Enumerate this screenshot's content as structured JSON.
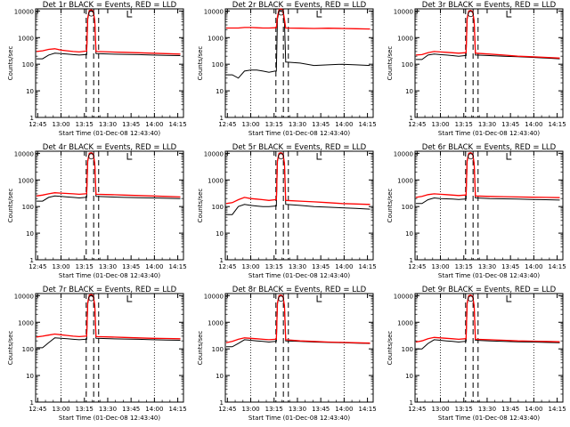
{
  "chart_data": {
    "type": "line",
    "layout": "3x3 grid of log-scale count-rate time series",
    "xlabel": "Start Time (01-Dec-08 12:43:40)",
    "ylabel": "Counts/sec",
    "xticks": [
      "12:45",
      "13:00",
      "13:15",
      "13:30",
      "13:45",
      "14:00",
      "14:15"
    ],
    "yticks": [
      "1",
      "10",
      "100",
      "1000",
      "10000"
    ],
    "ylim": [
      1,
      12000
    ],
    "yscale": "log",
    "series_colors": {
      "events": "#000000",
      "lld": "#ff0000"
    },
    "vertical_markers": {
      "dotted_minutes": [
        13.0,
        14.0
      ],
      "dashed_minutes": [
        32.5,
        37.3,
        40.5
      ],
      "dotted_offset_minutes": [
        15.0,
        75.0
      ]
    },
    "panels": [
      {
        "title": "Det 1r BLACK = Events, RED = LLD",
        "events": [
          160,
          160,
          220,
          260,
          250,
          240,
          230,
          220,
          230,
          10000,
          250,
          240,
          235,
          230,
          220,
          215,
          210
        ],
        "lld": [
          300,
          320,
          360,
          380,
          340,
          320,
          300,
          290,
          310,
          11000,
          300,
          290,
          280,
          270,
          260,
          250,
          240
        ]
      },
      {
        "title": "Det 2r BLACK = Events, RED = LLD",
        "events": [
          40,
          40,
          30,
          55,
          60,
          60,
          55,
          50,
          55,
          10000,
          120,
          110,
          90,
          95,
          100,
          95,
          90
        ],
        "lld": [
          2300,
          2300,
          2300,
          2400,
          2400,
          2350,
          2300,
          2300,
          2350,
          12000,
          2300,
          2250,
          2200,
          2250,
          2200,
          2150,
          2100
        ]
      },
      {
        "title": "Det 3r BLACK = Events, RED = LLD",
        "events": [
          150,
          150,
          220,
          240,
          230,
          220,
          210,
          200,
          210,
          10000,
          220,
          210,
          200,
          190,
          180,
          170,
          160
        ],
        "lld": [
          220,
          230,
          270,
          300,
          290,
          280,
          270,
          260,
          270,
          10500,
          260,
          240,
          220,
          200,
          190,
          180,
          170
        ]
      },
      {
        "title": "Det 4r BLACK = Events, RED = LLD",
        "events": [
          160,
          160,
          220,
          250,
          240,
          230,
          220,
          210,
          220,
          10000,
          240,
          230,
          220,
          215,
          210,
          205,
          200
        ],
        "lld": [
          250,
          270,
          300,
          330,
          320,
          310,
          300,
          290,
          300,
          10500,
          290,
          280,
          270,
          260,
          250,
          240,
          230
        ]
      },
      {
        "title": "Det 5r BLACK = Events, RED = LLD",
        "events": [
          50,
          50,
          100,
          120,
          110,
          105,
          100,
          100,
          105,
          10000,
          120,
          110,
          100,
          95,
          90,
          85,
          80
        ],
        "lld": [
          130,
          140,
          180,
          220,
          200,
          190,
          180,
          170,
          180,
          10500,
          170,
          160,
          150,
          140,
          130,
          125,
          120
        ]
      },
      {
        "title": "Det 6r BLACK = Events, RED = LLD",
        "events": [
          130,
          130,
          180,
          210,
          200,
          195,
          190,
          185,
          190,
          10000,
          210,
          200,
          195,
          190,
          185,
          180,
          175
        ],
        "lld": [
          220,
          240,
          280,
          300,
          290,
          280,
          270,
          260,
          270,
          10500,
          250,
          240,
          235,
          230,
          225,
          220,
          215
        ]
      },
      {
        "title": "Det 7r BLACK = Events, RED = LLD",
        "events": [
          110,
          110,
          170,
          260,
          250,
          240,
          230,
          220,
          230,
          10000,
          250,
          240,
          235,
          230,
          220,
          215,
          210
        ],
        "lld": [
          280,
          300,
          330,
          360,
          340,
          320,
          300,
          290,
          300,
          11000,
          290,
          280,
          270,
          260,
          250,
          245,
          240
        ]
      },
      {
        "title": "Det 8r BLACK = Events, RED = LLD",
        "events": [
          120,
          120,
          160,
          220,
          210,
          200,
          190,
          180,
          190,
          10000,
          200,
          190,
          180,
          175,
          170,
          165,
          160
        ],
        "lld": [
          170,
          190,
          230,
          260,
          250,
          240,
          230,
          220,
          230,
          10500,
          220,
          200,
          190,
          180,
          175,
          170,
          165
        ]
      },
      {
        "title": "Det 9r BLACK = Events, RED = LLD",
        "events": [
          100,
          100,
          160,
          220,
          210,
          200,
          190,
          180,
          190,
          10000,
          210,
          200,
          190,
          185,
          180,
          175,
          170
        ],
        "lld": [
          180,
          200,
          240,
          270,
          260,
          250,
          240,
          230,
          240,
          10500,
          230,
          220,
          210,
          200,
          195,
          190,
          185
        ]
      }
    ]
  }
}
